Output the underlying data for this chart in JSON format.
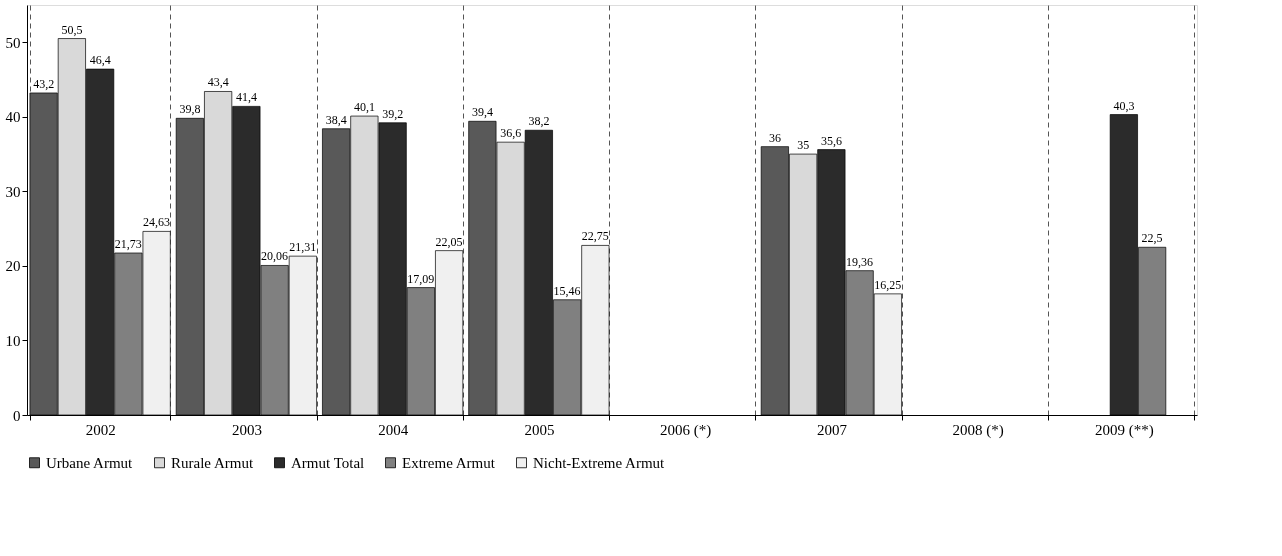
{
  "chart_data": {
    "type": "bar",
    "categories": [
      "2002",
      "2003",
      "2004",
      "2005",
      "2006 (*)",
      "2007",
      "2008 (*)",
      "2009 (**)"
    ],
    "series": [
      {
        "name": "Urbane Armut",
        "color": "#595959",
        "values": [
          43.2,
          39.8,
          38.4,
          39.4,
          null,
          36,
          null,
          null
        ],
        "value_labels": [
          "43,2",
          "39,8",
          "38,4",
          "39,4",
          null,
          "36",
          null,
          null
        ]
      },
      {
        "name": "Rurale Armut",
        "color": "#d9d9d9",
        "values": [
          50.5,
          43.4,
          40.1,
          36.6,
          null,
          35,
          null,
          null
        ],
        "value_labels": [
          "50,5",
          "43,4",
          "40,1",
          "36,6",
          null,
          "35",
          null,
          null
        ]
      },
      {
        "name": "Armut Total",
        "color": "#2b2b2b",
        "values": [
          46.4,
          41.4,
          39.2,
          38.2,
          null,
          35.6,
          null,
          40.3
        ],
        "value_labels": [
          "46,4",
          "41,4",
          "39,2",
          "38,2",
          null,
          "35,6",
          null,
          "40,3"
        ]
      },
      {
        "name": "Extreme Armut",
        "color": "#808080",
        "values": [
          21.73,
          20.06,
          17.09,
          15.46,
          null,
          19.36,
          null,
          22.5
        ],
        "value_labels": [
          "21,73",
          "20,06",
          "17,09",
          "15,46",
          null,
          "19,36",
          null,
          "22,5"
        ]
      },
      {
        "name": "Nicht-Extreme Armut",
        "color": "#f0f0f0",
        "values": [
          24.63,
          21.31,
          22.05,
          22.75,
          null,
          16.25,
          null,
          null
        ],
        "value_labels": [
          "24,63",
          "21,31",
          "22,05",
          "22,75",
          null,
          "16,25",
          null,
          null
        ]
      }
    ],
    "ylim": [
      0,
      55
    ],
    "yticks": [
      0,
      10,
      20,
      30,
      40,
      50
    ],
    "grid": "x",
    "legend": "bottom"
  }
}
